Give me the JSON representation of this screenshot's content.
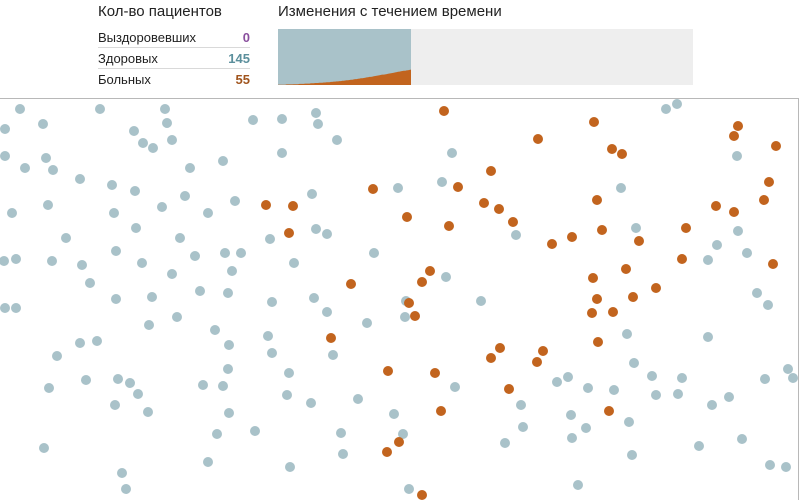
{
  "counts": {
    "title": "Кол-во пациентов",
    "recovered": {
      "label": "Выздоровевших",
      "value": "0",
      "color": "#8a4f9e"
    },
    "healthy": {
      "label": "Здоровых",
      "value": "145",
      "color": "#5b8f9c"
    },
    "sick": {
      "label": "Больных",
      "value": "55",
      "color": "#a0541d"
    }
  },
  "timeline": {
    "title": "Изменения с течением времени",
    "healthy_color": "#a9c2c9",
    "sick_color": "#c2641e",
    "background_color": "#eeeeee",
    "progress_fraction": 0.32,
    "population": 200,
    "sick_counts": [
      1,
      1,
      1,
      1,
      1,
      1,
      2,
      2,
      2,
      2,
      2,
      3,
      3,
      3,
      3,
      4,
      4,
      4,
      4,
      5,
      5,
      5,
      5,
      6,
      6,
      6,
      7,
      7,
      7,
      8,
      8,
      8,
      9,
      9,
      10,
      10,
      10,
      11,
      11,
      12,
      12,
      13,
      13,
      14,
      14,
      15,
      15,
      16,
      17,
      17,
      18,
      19,
      19,
      20,
      21,
      21,
      22,
      23,
      24,
      24,
      25,
      26,
      27,
      28,
      29,
      29,
      30,
      31,
      32,
      33,
      34,
      35,
      36,
      37,
      37,
      38,
      39,
      40,
      41,
      42,
      43,
      44,
      45,
      46,
      47,
      48,
      49,
      50,
      51,
      51,
      52,
      53,
      54,
      55
    ]
  },
  "simulation": {
    "healthy_color": "#a9c2c9",
    "sick_color": "#c2641e"
  }
}
